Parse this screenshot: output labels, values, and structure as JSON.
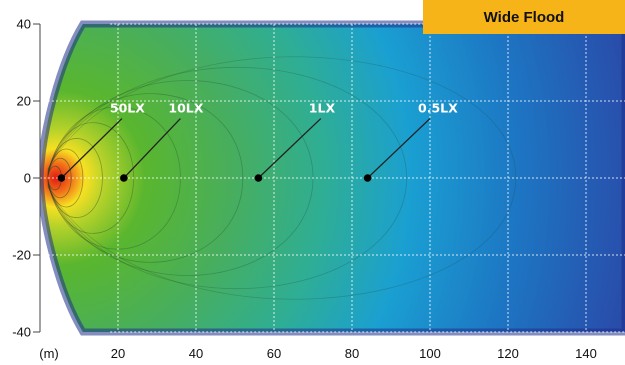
{
  "badge": {
    "label": "Wide Flood",
    "color": "#f7b418"
  },
  "chart_data": {
    "type": "heatmap",
    "title": "Wide Flood",
    "xlabel": "(m)",
    "ylabel": "",
    "xlim": [
      0,
      150
    ],
    "ylim": [
      -40,
      40
    ],
    "x_ticks": [
      20,
      40,
      60,
      80,
      100,
      120,
      140
    ],
    "y_ticks": [
      40,
      20,
      0,
      -20,
      -40
    ],
    "x_unit_label": "(m)",
    "grid": true,
    "grid_style": "dashed",
    "isolux_annotations": [
      {
        "label": "50LX",
        "point": [
          5.5,
          0
        ],
        "label_pos": [
          21,
          17
        ]
      },
      {
        "label": "10LX",
        "point": [
          21.5,
          0
        ],
        "label_pos": [
          36,
          17
        ]
      },
      {
        "label": "1LX",
        "point": [
          56,
          0
        ],
        "label_pos": [
          72,
          17
        ]
      },
      {
        "label": "0.5LX",
        "point": [
          84,
          0
        ],
        "label_pos": [
          100,
          17
        ]
      }
    ],
    "beam_extent_m": [
      {
        "x": 0,
        "half_width": 0
      },
      {
        "x": 5,
        "half_width": 35
      },
      {
        "x": 10,
        "half_width": 40
      },
      {
        "x": 150,
        "half_width": 40
      }
    ],
    "colors": {
      "peak": "#e21a12",
      "high": "#f7e022",
      "mid": "#5ab62e",
      "low": "#1a9fd2",
      "edge": "#2440a6"
    }
  }
}
